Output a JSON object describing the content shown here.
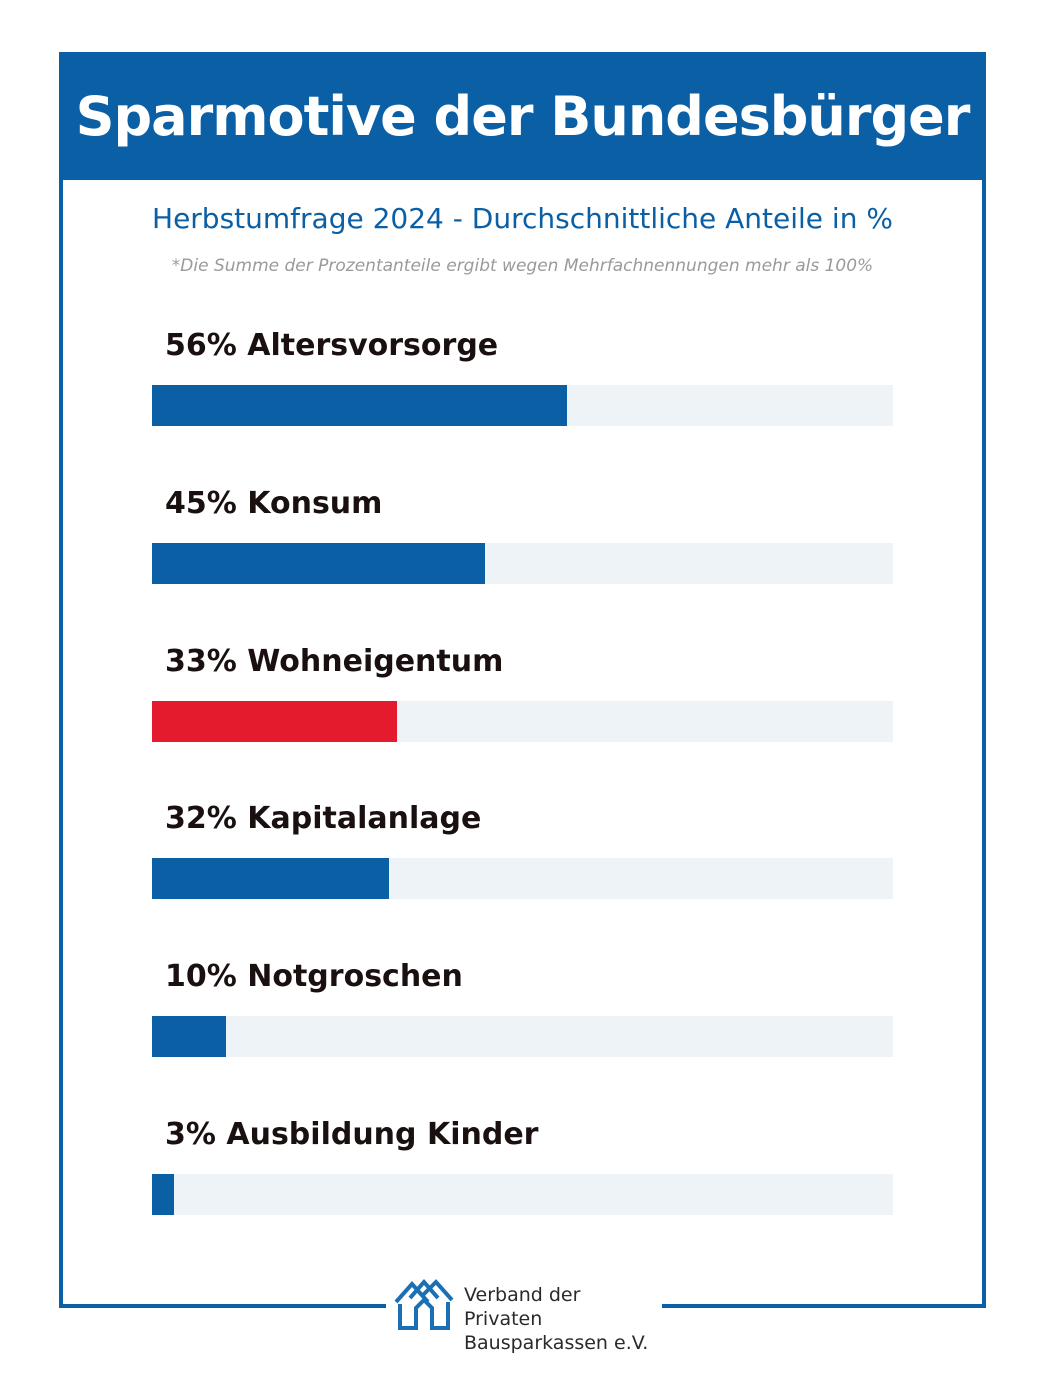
{
  "header": {
    "title": "Sparmotive der Bundesbürger"
  },
  "subtitle": "Herbstumfrage 2024 - Durchschnittliche Anteile in %",
  "note": "*Die Summe der Prozentanteile ergibt wegen Mehrfachnennungen mehr als 100%",
  "colors": {
    "primary": "#0b5fa5",
    "highlight": "#e31b2c",
    "track": "#eef3f8"
  },
  "chart_data": {
    "type": "bar",
    "orientation": "horizontal",
    "categories": [
      "Altersvorsorge",
      "Konsum",
      "Wohneigentum",
      "Kapitalanlage",
      "Notgroschen",
      "Ausbildung Kinder"
    ],
    "values": [
      56,
      45,
      33,
      32,
      10,
      3
    ],
    "labels": [
      "56% Altersvorsorge",
      "45% Konsum",
      "33% Wohneigentum",
      "32% Kapitalanlage",
      "10% Notgroschen",
      "3% Ausbildung Kinder"
    ],
    "highlight_index": 2,
    "xlim": [
      0,
      100
    ],
    "grid": false,
    "legend": "none"
  },
  "footer": {
    "logo_icon": "houses-icon",
    "org_line1": "Verband der Privaten",
    "org_line2": "Bausparkassen e.V."
  }
}
